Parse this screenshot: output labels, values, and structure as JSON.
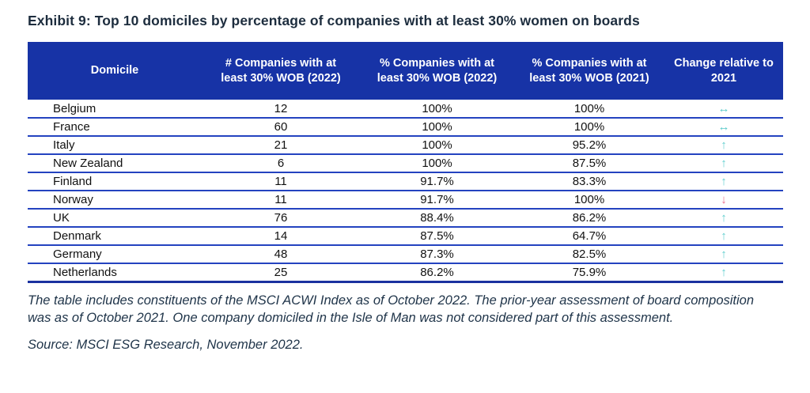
{
  "title": "Exhibit 9: Top 10 domiciles by percentage of companies with at least 30% women on boards",
  "chart_data": {
    "type": "table",
    "title": "Exhibit 9: Top 10 domiciles by percentage of companies with at least 30% women on boards",
    "columns": [
      "Domicile",
      "# Companies with at least 30% WOB (2022)",
      "% Companies with at least 30% WOB (2022)",
      "% Companies with at least 30% WOB (2021)",
      "Change relative to 2021"
    ],
    "rows": [
      {
        "domicile": "Belgium",
        "companies_2022": "12",
        "pct_2022": "100%",
        "pct_2021": "100%",
        "change": "unchanged"
      },
      {
        "domicile": "France",
        "companies_2022": "60",
        "pct_2022": "100%",
        "pct_2021": "100%",
        "change": "unchanged"
      },
      {
        "domicile": "Italy",
        "companies_2022": "21",
        "pct_2022": "100%",
        "pct_2021": "95.2%",
        "change": "up"
      },
      {
        "domicile": "New Zealand",
        "companies_2022": "6",
        "pct_2022": "100%",
        "pct_2021": "87.5%",
        "change": "up"
      },
      {
        "domicile": "Finland",
        "companies_2022": "11",
        "pct_2022": "91.7%",
        "pct_2021": "83.3%",
        "change": "up"
      },
      {
        "domicile": "Norway",
        "companies_2022": "11",
        "pct_2022": "91.7%",
        "pct_2021": "100%",
        "change": "down"
      },
      {
        "domicile": "UK",
        "companies_2022": "76",
        "pct_2022": "88.4%",
        "pct_2021": "86.2%",
        "change": "up"
      },
      {
        "domicile": "Denmark",
        "companies_2022": "14",
        "pct_2022": "87.5%",
        "pct_2021": "64.7%",
        "change": "up"
      },
      {
        "domicile": "Germany",
        "companies_2022": "48",
        "pct_2022": "87.3%",
        "pct_2021": "82.5%",
        "change": "up"
      },
      {
        "domicile": "Netherlands",
        "companies_2022": "25",
        "pct_2022": "86.2%",
        "pct_2021": "75.9%",
        "change": "up"
      }
    ]
  },
  "arrows": {
    "up": "↑",
    "down": "↓",
    "unchanged": "↔"
  },
  "footnote": "The table includes constituents of the MSCI ACWI Index as of October 2022. The prior-year assessment of board composition was as of October 2021. One company domiciled in the Isle of Man was not considered part of this assessment.",
  "source": "Source: MSCI ESG Research, November 2022.",
  "colors": {
    "header_bg": "#1733A6",
    "header_text": "#FFFFFF",
    "row_divider": "#2443C0",
    "table_bottom_border": "#1B32A0",
    "arrow_up": "#63CFCF",
    "arrow_down": "#EB6E8C",
    "arrow_unchanged": "#58CACA",
    "title_text": "#1D2D3E",
    "footnote_text": "#20354A",
    "body_text": "#111111"
  }
}
